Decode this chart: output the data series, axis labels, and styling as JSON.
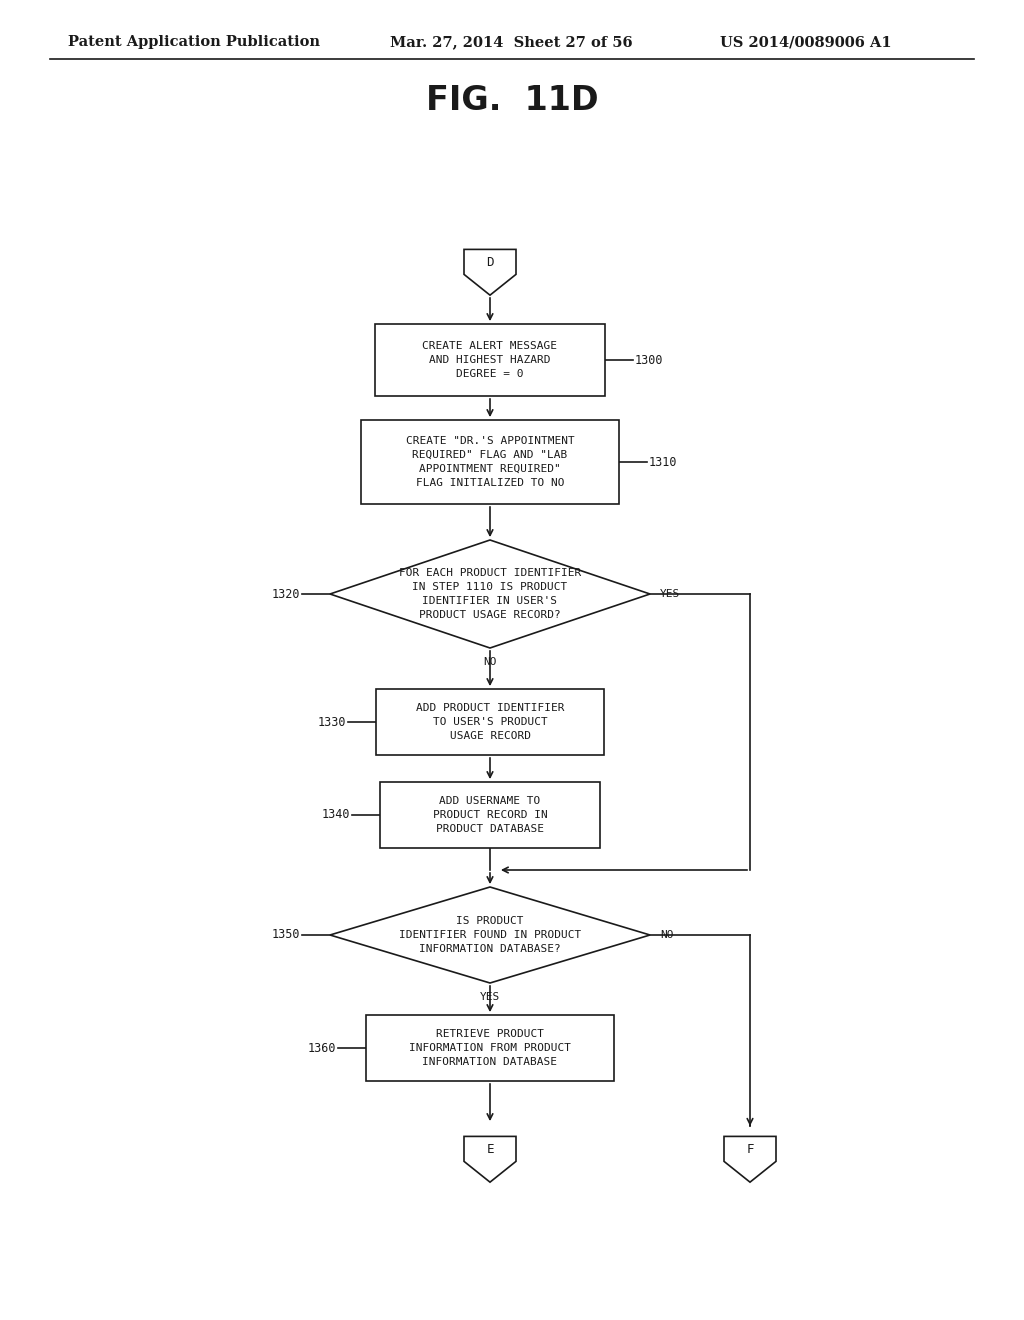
{
  "title": "FIG.  11D",
  "header_left": "Patent Application Publication",
  "header_mid": "Mar. 27, 2014  Sheet 27 of 56",
  "header_right": "US 2014/0089006 A1",
  "bg_color": "#ffffff",
  "line_color": "#1a1a1a",
  "text_color": "#1a1a1a",
  "font_size_header": 10.5,
  "font_size_title": 24,
  "font_size_box": 8.0,
  "font_size_label": 8.5,
  "font_size_yesno": 8.0
}
